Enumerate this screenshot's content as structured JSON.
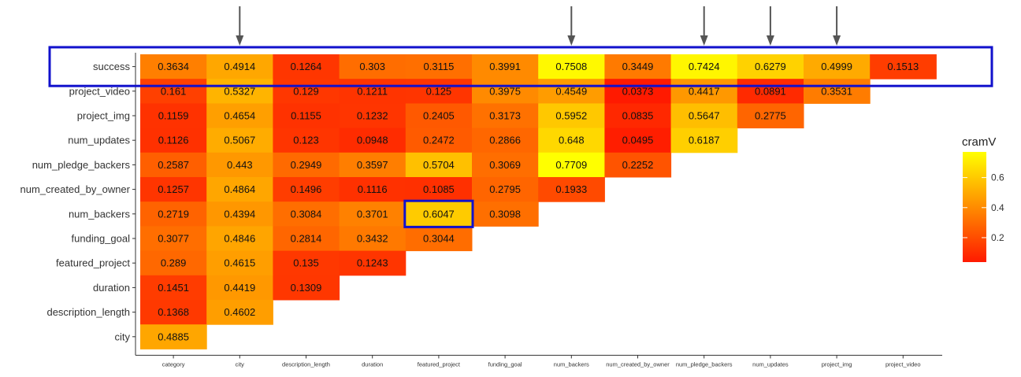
{
  "chart_data": {
    "type": "heatmap",
    "title": "",
    "xlabel": "",
    "ylabel": "",
    "x_categories": [
      "category",
      "city",
      "description_length",
      "duration",
      "featured_project",
      "funding_goal",
      "num_backers",
      "num_created_by_owner",
      "num_pledge_backers",
      "num_updates",
      "project_img",
      "project_video"
    ],
    "y_categories": [
      "success",
      "project_video",
      "project_img",
      "num_updates",
      "num_pledge_backers",
      "num_created_by_owner",
      "num_backers",
      "funding_goal",
      "featured_project",
      "duration",
      "description_length",
      "city"
    ],
    "values": [
      [
        "0.3634",
        "0.4914",
        "0.1264",
        "0.303",
        "0.3115",
        "0.3991",
        "0.7508",
        "0.3449",
        "0.7424",
        "0.6279",
        "0.4999",
        "0.1513"
      ],
      [
        "0.161",
        "0.5327",
        "0.129",
        "0.1211",
        "0.125",
        "0.3975",
        "0.4549",
        "0.0373",
        "0.4417",
        "0.0891",
        "0.3531"
      ],
      [
        "0.1159",
        "0.4654",
        "0.1155",
        "0.1232",
        "0.2405",
        "0.3173",
        "0.5952",
        "0.0835",
        "0.5647",
        "0.2775"
      ],
      [
        "0.1126",
        "0.5067",
        "0.123",
        "0.0948",
        "0.2472",
        "0.2866",
        "0.648",
        "0.0495",
        "0.6187"
      ],
      [
        "0.2587",
        "0.443",
        "0.2949",
        "0.3597",
        "0.5704",
        "0.3069",
        "0.7709",
        "0.2252"
      ],
      [
        "0.1257",
        "0.4864",
        "0.1496",
        "0.1116",
        "0.1085",
        "0.2795",
        "0.1933"
      ],
      [
        "0.2719",
        "0.4394",
        "0.3084",
        "0.3701",
        "0.6047",
        "0.3098"
      ],
      [
        "0.3077",
        "0.4846",
        "0.2814",
        "0.3432",
        "0.3044"
      ],
      [
        "0.289",
        "0.4615",
        "0.135",
        "0.1243"
      ],
      [
        "0.1451",
        "0.4419",
        "0.1309"
      ],
      [
        "0.1368",
        "0.4602"
      ],
      [
        "0.4885"
      ]
    ],
    "legend": {
      "title": "cramV",
      "ticks": [
        "0.2",
        "0.4",
        "0.6"
      ],
      "range": [
        0.0373,
        0.7709
      ],
      "colors": [
        "#ff1a00",
        "#ff8c00",
        "#ffff00"
      ],
      "position": "right"
    },
    "annotations": {
      "highlight_row": "success",
      "highlight_cell": {
        "row": "num_backers",
        "col": "featured_project"
      },
      "arrow_columns": [
        "city",
        "num_backers",
        "num_pledge_backers",
        "num_updates",
        "project_img"
      ],
      "highlight_color": "#1111cc",
      "arrow_color": "#555555"
    }
  }
}
